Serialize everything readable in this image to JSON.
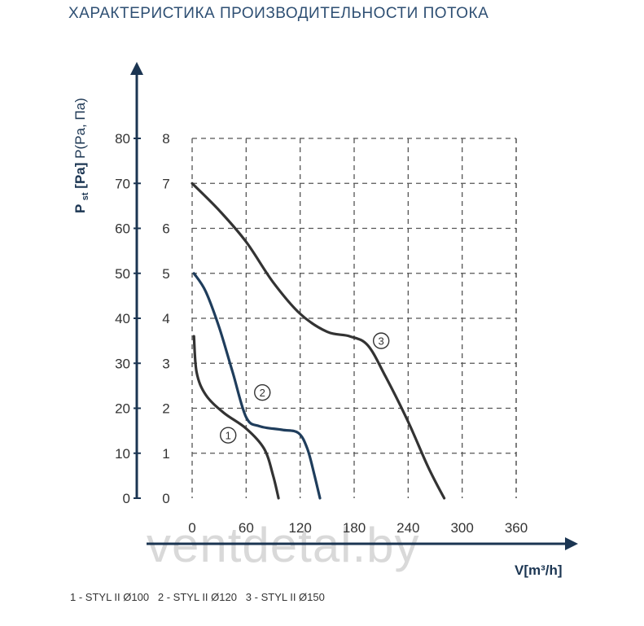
{
  "title": "ХАРАКТЕРИСТИКА ПРОИЗВОДИТЕЛЬНОСТИ ПОТОКА",
  "watermark": "ventdetal.by",
  "legend": "1 - STYL II Ø100   2 - STYL II Ø120   3 - STYL II Ø150",
  "colors": {
    "grid": "#555555",
    "axis": "#1b3552",
    "curve_1": "#333333",
    "curve_2": "#1f3d5c",
    "curve_3": "#333333"
  },
  "chart_data": {
    "type": "line",
    "xlabel": "V[m³/h]",
    "ylabel": "P st [Pa] P(Pa, Па)",
    "ylabel_parts": {
      "p": "P",
      "st": "st",
      "pa": "[Pa]",
      "sub": "P(Pa, Па)"
    },
    "xlim": [
      0,
      360
    ],
    "ylim": [
      0,
      80
    ],
    "y2lim": [
      0,
      8
    ],
    "x_ticks": [
      0,
      60,
      120,
      180,
      240,
      300,
      360
    ],
    "y_ticks": [
      0,
      10,
      20,
      30,
      40,
      50,
      60,
      70,
      80
    ],
    "y2_ticks": [
      0,
      1,
      2,
      3,
      4,
      5,
      6,
      7,
      8
    ],
    "grid": true,
    "series": [
      {
        "name": "1",
        "label_at": [
          40,
          14
        ],
        "x": [
          2,
          5,
          15,
          35,
          60,
          80,
          90,
          96
        ],
        "y": [
          36,
          28,
          23,
          19,
          15.5,
          11,
          5,
          0
        ]
      },
      {
        "name": "2",
        "label_at": [
          78,
          23.5
        ],
        "x": [
          2,
          15,
          30,
          45,
          60,
          75,
          100,
          118,
          128,
          136,
          142
        ],
        "y": [
          50,
          46,
          38,
          28,
          18,
          16,
          15.2,
          14.5,
          11,
          5,
          0
        ]
      },
      {
        "name": "3",
        "label_at": [
          210,
          35
        ],
        "x": [
          0,
          30,
          60,
          90,
          120,
          150,
          175,
          195,
          215,
          240,
          262,
          280
        ],
        "y": [
          70,
          64,
          57,
          48,
          41,
          37,
          36,
          34,
          27,
          17,
          7,
          0
        ]
      }
    ]
  }
}
